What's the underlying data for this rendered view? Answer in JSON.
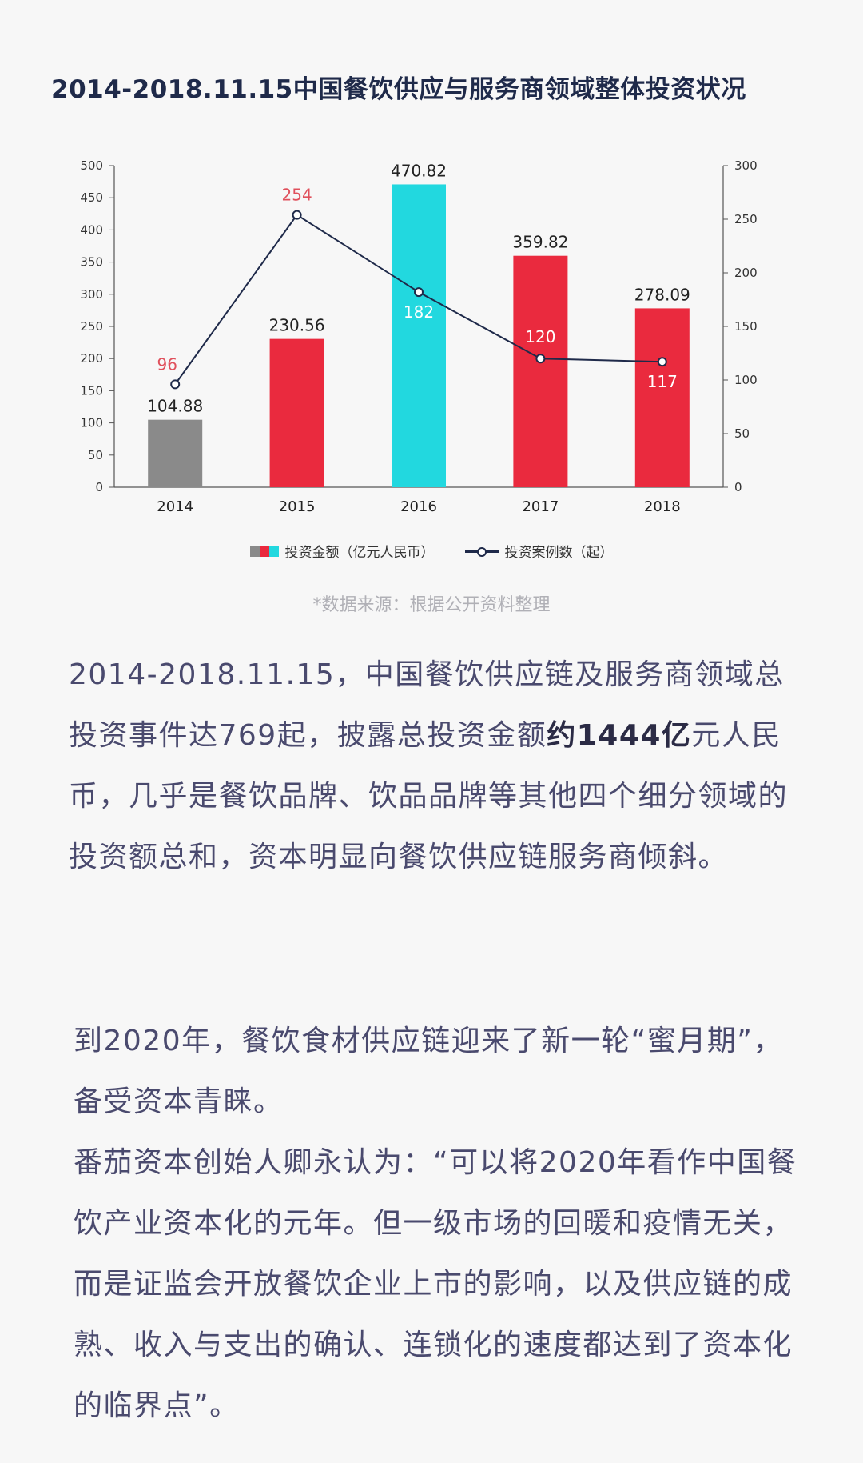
{
  "chart_data": {
    "type": "bar",
    "title": "2014-2018.11.15中国餐饮供应与服务商领域整体投资状况",
    "categories": [
      "2014",
      "2015",
      "2016",
      "2017",
      "2018"
    ],
    "series": [
      {
        "name": "投资金额（亿元人民币）",
        "type": "bar",
        "axis": "left",
        "values": [
          104.88,
          230.56,
          470.82,
          359.82,
          278.09
        ],
        "value_labels": [
          "104.88",
          "230.56",
          "470.82",
          "359.82",
          "278.09"
        ],
        "colors": [
          "#8a8a8a",
          "#ea2a3e",
          "#22d8df",
          "#ea2a3e",
          "#ea2a3e"
        ]
      },
      {
        "name": "投资案例数（起）",
        "type": "line",
        "axis": "right",
        "values": [
          96,
          254,
          182,
          120,
          117
        ],
        "value_labels": [
          "96",
          "254",
          "182",
          "120",
          "117"
        ],
        "label_colors": [
          "#e0505c",
          "#e0505c",
          "#ffffff",
          "#ffffff",
          "#ffffff"
        ],
        "color": "#1f2a4a"
      }
    ],
    "y_left": {
      "range": [
        0,
        500
      ],
      "ticks": [
        "0",
        "50",
        "100",
        "150",
        "200",
        "250",
        "300",
        "350",
        "400",
        "450",
        "500"
      ]
    },
    "y_right": {
      "range": [
        0,
        300
      ],
      "ticks": [
        "0",
        "50",
        "100",
        "150",
        "200",
        "250",
        "300"
      ]
    },
    "grid": false,
    "legend_position": "bottom",
    "source": "*数据来源：根据公开资料整理"
  },
  "legend": {
    "bar_label": "投资金额（亿元人民币）",
    "line_label": "投资案例数（起）",
    "bar_swatch_colors": [
      "#8a8a8a",
      "#ea2a3e",
      "#22d8df"
    ]
  },
  "body": {
    "p1_part1": "2014-2018.11.15，中国餐饮供应链及服务商领域总投资事件达769起，披露总投资金额",
    "p1_strong": "约1444亿",
    "p1_part2": "元人民币，几乎是餐饮品牌、饮品品牌等其他四个细分领域的投资额总和，资本明显向餐饮供应链服务商倾斜。",
    "p2": "到2020年，餐饮食材供应链迎来了新一轮“蜜月期”，备受资本青睐。",
    "p3": "番茄资本创始人卿永认为：“可以将2020年看作中国餐饮产业资本化的元年。但一级市场的回暖和疫情无关，而是证监会开放餐饮企业上市的影响，以及供应链的成熟、收入与支出的确认、连锁化的速度都达到了资本化的临界点”。"
  }
}
